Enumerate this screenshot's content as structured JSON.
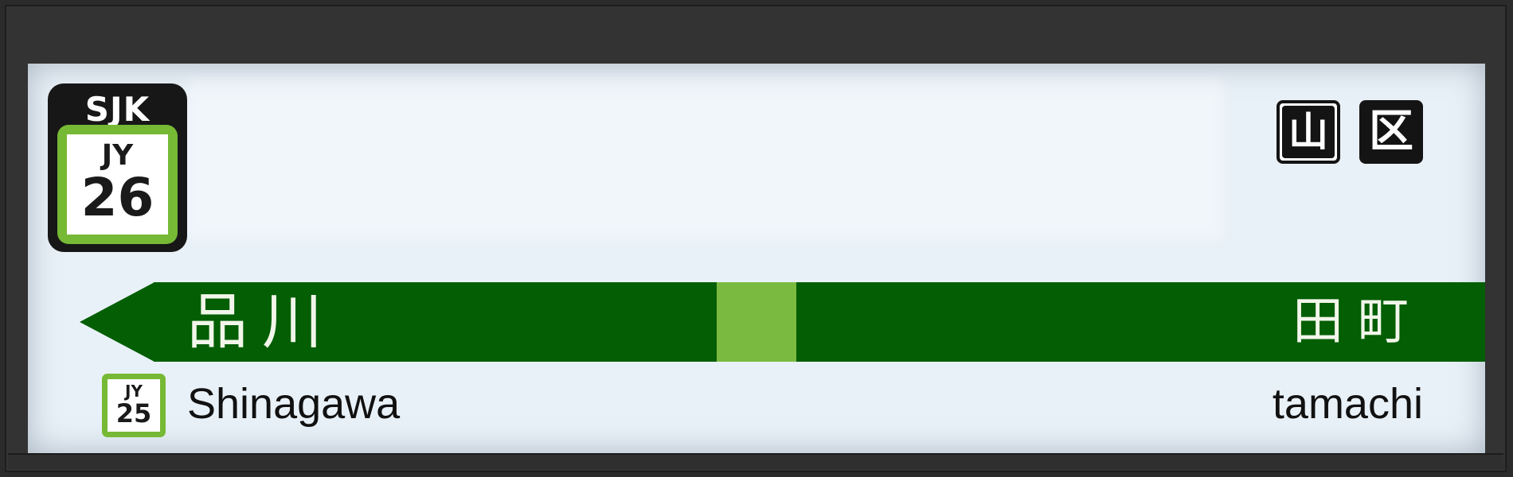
{
  "station": {
    "code": "SJK",
    "line_code": "JY",
    "number": "26"
  },
  "ward_marks": [
    "山",
    "区"
  ],
  "prev_station": {
    "name_jp": "品川",
    "name_en": "Shinagawa",
    "line_code": "JY",
    "number": "25"
  },
  "next_station": {
    "name_jp": "田町",
    "name_en": "tamachi"
  },
  "colors": {
    "line_dark": "#035e04",
    "line_light": "#76b935"
  }
}
